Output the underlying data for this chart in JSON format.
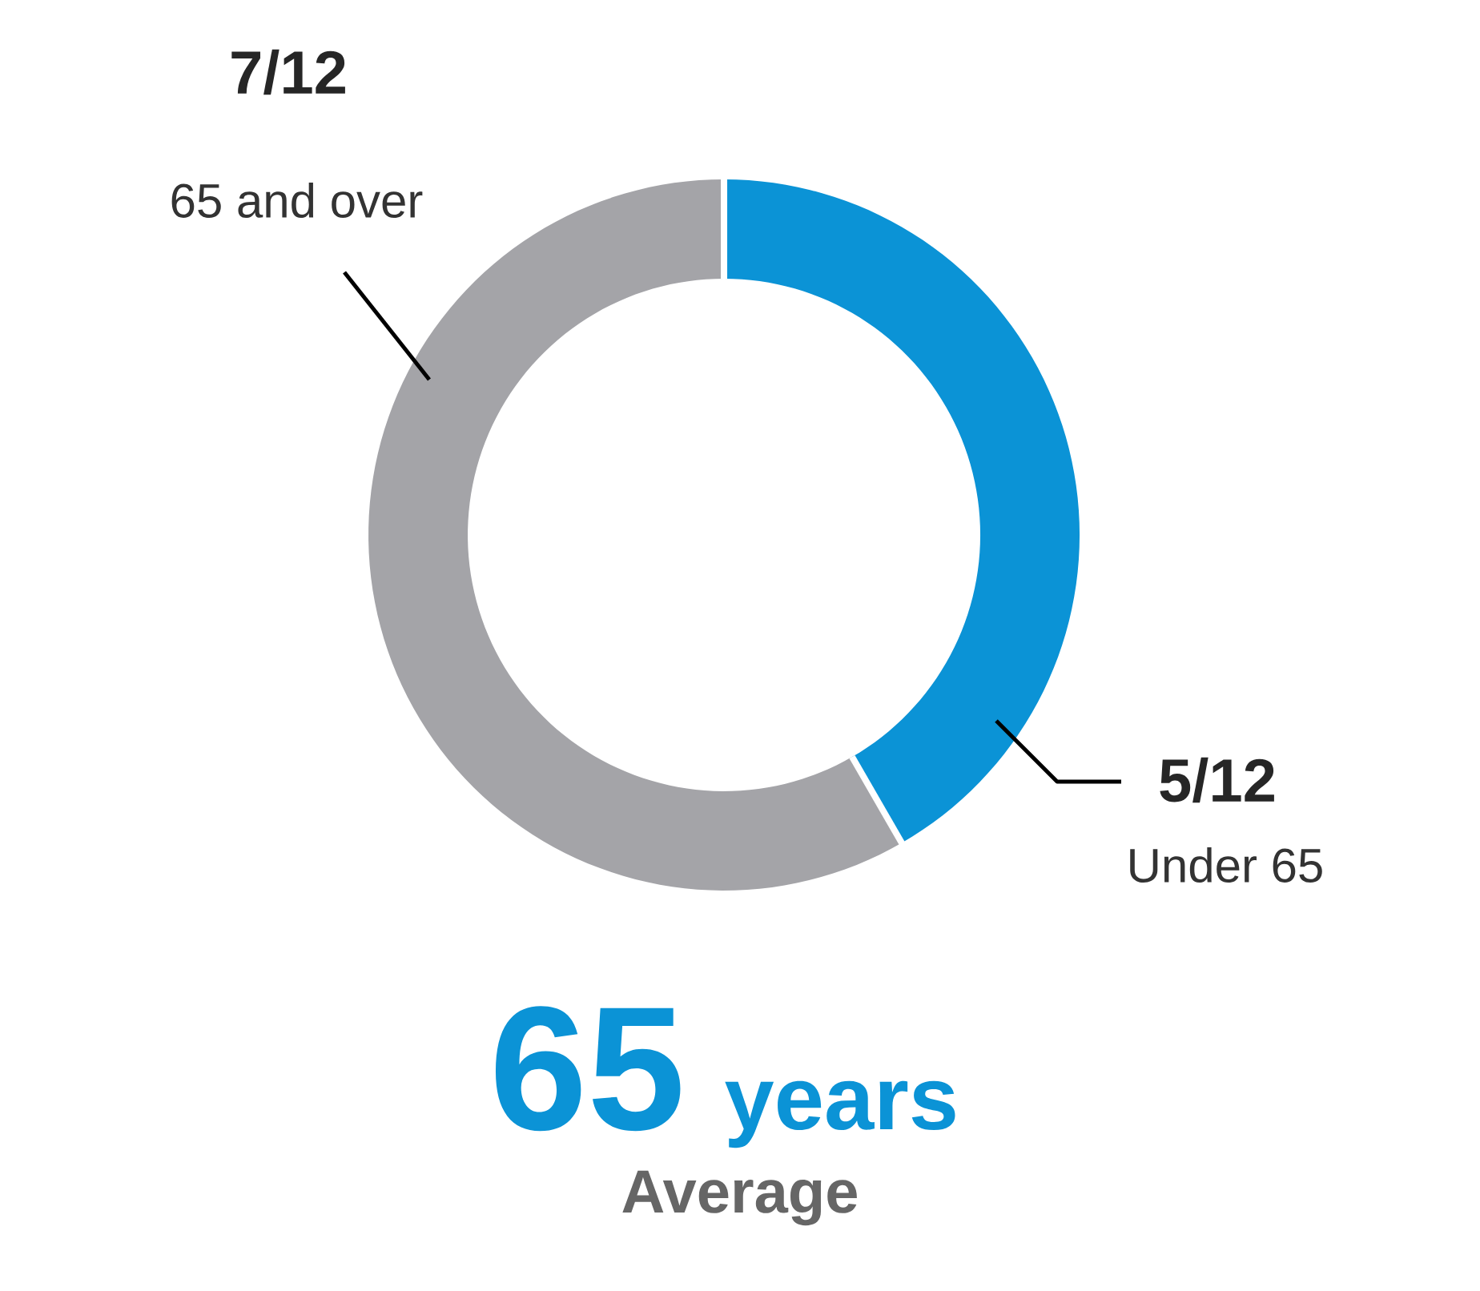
{
  "chart_data": {
    "type": "donut",
    "categories": [
      "Under 65",
      "65 and over"
    ],
    "values": [
      0.4167,
      0.5833
    ],
    "value_labels": [
      "5/12",
      "7/12"
    ],
    "colors": [
      "#0b93d6",
      "#a4a4a8"
    ],
    "annotations": [
      "65",
      "years",
      "Average"
    ]
  }
}
